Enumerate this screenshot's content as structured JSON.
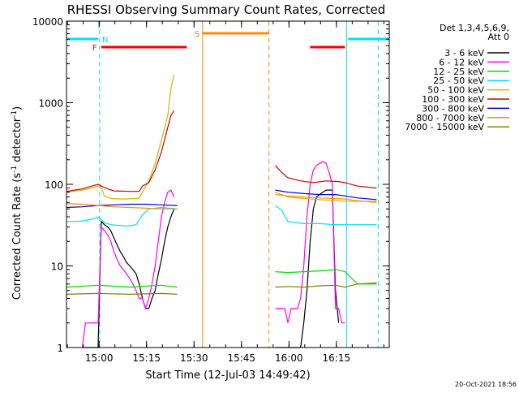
{
  "chart_data": {
    "type": "line",
    "title": "RHESSI Observing Summary Count Rates, Corrected",
    "xlabel": "Start Time (12-Jul-03 14:49:42)",
    "ylabel_main": "Corrected Count Rate (s",
    "ylabel_sup1": "-1",
    "ylabel_mid": " detector",
    "ylabel_sup2": "-1",
    "ylabel_end": ")",
    "y_scale": "log",
    "ylim": [
      1,
      10000
    ],
    "xlim_minutes": [
      0,
      102
    ],
    "x_tick_values": [
      10.3,
      25.3,
      40.3,
      55.3,
      70.3,
      85.3
    ],
    "x_tick_labels": [
      "15:00",
      "15:15",
      "15:30",
      "15:45",
      "16:00",
      "16:15"
    ],
    "y_tick_values": [
      1,
      10,
      100,
      1000,
      10000
    ],
    "y_tick_labels": [
      "1",
      "10",
      "100",
      "1000",
      "10000"
    ],
    "legend_header": [
      "Det 1,3,4,5,6,9,",
      "Att 0"
    ],
    "legend_position": "top-right",
    "footer_date": "20-Oct-2021 18:56",
    "flags": {
      "night_label": "N",
      "flare_label": "F",
      "saa_label": "S",
      "night_color": "#00e0ff",
      "flare_color": "#ff0000",
      "saa_color": "#ff8c00",
      "night_bars": [
        [
          0,
          10
        ],
        [
          89,
          102
        ]
      ],
      "flare_bars": [
        [
          11,
          38
        ],
        [
          77,
          88
        ]
      ],
      "saa_bar": [
        43,
        64
      ],
      "solid_lines": [
        [
          0,
          "#00e0ff"
        ],
        [
          88.5,
          "#00e0ff"
        ],
        [
          43,
          "#ff8c00"
        ]
      ],
      "dashed_lines": [
        [
          10.5,
          "#00e0ff"
        ],
        [
          98.5,
          "#00e0ff"
        ],
        [
          64,
          "#ff8c00"
        ]
      ]
    },
    "series": [
      {
        "name": "3 - 6 keV",
        "color": "#000000",
        "segments": [
          [
            [
              5,
              1
            ],
            [
              6,
              1
            ],
            [
              7,
              1
            ],
            [
              8,
              1
            ],
            [
              9,
              1
            ],
            [
              10,
              1
            ],
            [
              11,
              35
            ],
            [
              12,
              32
            ],
            [
              13,
              30
            ],
            [
              14,
              27
            ],
            [
              15,
              22
            ],
            [
              16,
              18
            ],
            [
              17,
              15
            ],
            [
              18,
              13
            ],
            [
              19,
              11
            ],
            [
              20,
              10
            ],
            [
              21,
              9
            ],
            [
              22,
              8
            ],
            [
              23,
              6
            ],
            [
              24,
              4
            ],
            [
              25,
              3
            ],
            [
              26,
              3
            ],
            [
              27,
              4
            ],
            [
              28,
              5
            ],
            [
              29,
              8
            ],
            [
              30,
              12
            ],
            [
              31,
              20
            ],
            [
              32,
              30
            ],
            [
              33,
              40
            ],
            [
              34,
              50
            ]
          ],
          [
            [
              66,
              1
            ],
            [
              67,
              1
            ],
            [
              68,
              1
            ],
            [
              69,
              1
            ],
            [
              70,
              1
            ],
            [
              71,
              1
            ],
            [
              72,
              1
            ],
            [
              73,
              1
            ],
            [
              74,
              1
            ],
            [
              75,
              2
            ],
            [
              76,
              5
            ],
            [
              77,
              20
            ],
            [
              78,
              50
            ],
            [
              79,
              70
            ],
            [
              80,
              75
            ],
            [
              81,
              80
            ],
            [
              82,
              85
            ],
            [
              83,
              85
            ],
            [
              84,
              85
            ],
            [
              85,
              5
            ],
            [
              86,
              2
            ]
          ]
        ]
      },
      {
        "name": "6 - 12 keV",
        "color": "#ff00ff",
        "segments": [
          [
            [
              5,
              1
            ],
            [
              6,
              2
            ],
            [
              7,
              2
            ],
            [
              8,
              2
            ],
            [
              9,
              2
            ],
            [
              10,
              2
            ],
            [
              11,
              30
            ],
            [
              12,
              27
            ],
            [
              13,
              24
            ],
            [
              14,
              20
            ],
            [
              15,
              15
            ],
            [
              16,
              12
            ],
            [
              17,
              10
            ],
            [
              18,
              9
            ],
            [
              19,
              8
            ],
            [
              20,
              7
            ],
            [
              21,
              6
            ],
            [
              22,
              5
            ],
            [
              23,
              4
            ],
            [
              24,
              4
            ],
            [
              25,
              3
            ],
            [
              26,
              4
            ],
            [
              27,
              6
            ],
            [
              28,
              10
            ],
            [
              29,
              20
            ],
            [
              30,
              40
            ],
            [
              31,
              60
            ],
            [
              32,
              80
            ],
            [
              33,
              85
            ],
            [
              34,
              70
            ]
          ],
          [
            [
              66,
              3
            ],
            [
              67,
              3
            ],
            [
              68,
              3
            ],
            [
              69,
              3
            ],
            [
              70,
              2
            ],
            [
              71,
              3
            ],
            [
              72,
              3
            ],
            [
              73,
              3
            ],
            [
              74,
              4
            ],
            [
              75,
              10
            ],
            [
              76,
              40
            ],
            [
              77,
              100
            ],
            [
              78,
              150
            ],
            [
              79,
              170
            ],
            [
              80,
              180
            ],
            [
              81,
              190
            ],
            [
              82,
              180
            ],
            [
              83,
              140
            ],
            [
              84,
              100
            ],
            [
              85,
              3
            ],
            [
              86,
              3
            ],
            [
              87,
              2
            ],
            [
              88,
              2
            ]
          ]
        ]
      },
      {
        "name": "12 - 25 keV",
        "color": "#00dd00",
        "segments": [
          [
            [
              0,
              5.5
            ],
            [
              10,
              5.8
            ],
            [
              20,
              5.5
            ],
            [
              30,
              5.8
            ],
            [
              35,
              5.5
            ]
          ],
          [
            [
              66,
              8.5
            ],
            [
              70,
              8.3
            ],
            [
              75,
              8.5
            ],
            [
              80,
              8.7
            ],
            [
              85,
              9
            ],
            [
              88,
              8.5
            ],
            [
              92,
              6
            ],
            [
              98,
              6
            ]
          ]
        ]
      },
      {
        "name": "25 - 50 keV",
        "color": "#00e0ff",
        "segments": [
          [
            [
              0,
              35
            ],
            [
              3,
              35
            ],
            [
              6,
              36
            ],
            [
              9,
              38
            ],
            [
              10,
              40
            ],
            [
              11,
              37
            ],
            [
              12,
              34
            ],
            [
              14,
              32
            ],
            [
              18,
              31
            ],
            [
              20,
              31
            ],
            [
              22,
              32
            ],
            [
              24,
              42
            ],
            [
              26,
              50
            ],
            [
              30,
              52
            ],
            [
              35,
              50
            ]
          ],
          [
            [
              66,
              55
            ],
            [
              68,
              48
            ],
            [
              70,
              35
            ],
            [
              75,
              33
            ],
            [
              80,
              33
            ],
            [
              85,
              32
            ],
            [
              90,
              32
            ],
            [
              98,
              32
            ]
          ]
        ]
      },
      {
        "name": "50 - 100 keV",
        "color": "#d4b400",
        "segments": [
          [
            [
              0,
              80
            ],
            [
              5,
              85
            ],
            [
              8,
              90
            ],
            [
              10,
              95
            ],
            [
              11,
              90
            ],
            [
              12,
              72
            ],
            [
              14,
              67
            ],
            [
              18,
              66
            ],
            [
              22,
              67
            ],
            [
              23,
              68
            ],
            [
              24,
              80
            ],
            [
              26,
              110
            ],
            [
              28,
              180
            ],
            [
              30,
              350
            ],
            [
              32,
              700
            ],
            [
              33,
              1500
            ],
            [
              34,
              2200
            ]
          ],
          [
            [
              66,
              80
            ],
            [
              70,
              70
            ],
            [
              75,
              67
            ],
            [
              80,
              65
            ],
            [
              85,
              63
            ],
            [
              90,
              62
            ],
            [
              98,
              62
            ]
          ]
        ]
      },
      {
        "name": "100 - 300 keV",
        "color": "#cc0000",
        "segments": [
          [
            [
              0,
              82
            ],
            [
              5,
              88
            ],
            [
              8,
              95
            ],
            [
              10,
              100
            ],
            [
              11,
              95
            ],
            [
              13,
              88
            ],
            [
              15,
              83
            ],
            [
              20,
              82
            ],
            [
              23,
              82
            ],
            [
              24,
              95
            ],
            [
              26,
              105
            ],
            [
              28,
              150
            ],
            [
              30,
              250
            ],
            [
              32,
              500
            ],
            [
              33,
              700
            ],
            [
              34,
              800
            ]
          ],
          [
            [
              66,
              170
            ],
            [
              68,
              140
            ],
            [
              70,
              120
            ],
            [
              74,
              110
            ],
            [
              78,
              105
            ],
            [
              82,
              110
            ],
            [
              86,
              108
            ],
            [
              88,
              105
            ],
            [
              92,
              95
            ],
            [
              98,
              90
            ]
          ]
        ]
      },
      {
        "name": "300 - 800 keV",
        "color": "#0000cc",
        "segments": [
          [
            [
              0,
              52
            ],
            [
              5,
              53
            ],
            [
              10,
              55
            ],
            [
              15,
              56
            ],
            [
              20,
              57
            ],
            [
              25,
              57
            ],
            [
              30,
              56
            ],
            [
              35,
              55
            ]
          ],
          [
            [
              66,
              85
            ],
            [
              70,
              80
            ],
            [
              75,
              77
            ],
            [
              80,
              75
            ],
            [
              85,
              75
            ],
            [
              88,
              72
            ],
            [
              92,
              68
            ],
            [
              98,
              65
            ]
          ]
        ]
      },
      {
        "name": "800 - 7000 keV",
        "color": "#ff8c00",
        "segments": [
          [
            [
              0,
              58
            ],
            [
              5,
              57
            ],
            [
              10,
              55
            ],
            [
              15,
              53
            ],
            [
              20,
              52
            ],
            [
              25,
              51
            ],
            [
              30,
              50
            ],
            [
              35,
              50
            ]
          ],
          [
            [
              66,
              75
            ],
            [
              70,
              72
            ],
            [
              75,
              70
            ],
            [
              80,
              68
            ],
            [
              85,
              67
            ],
            [
              88,
              66
            ],
            [
              92,
              63
            ],
            [
              98,
              60
            ]
          ]
        ]
      },
      {
        "name": "7000 - 15000 keV",
        "color": "#808000",
        "segments": [
          [
            [
              0,
              4.5
            ],
            [
              10,
              4.6
            ],
            [
              20,
              4.5
            ],
            [
              30,
              4.6
            ],
            [
              35,
              4.5
            ]
          ],
          [
            [
              66,
              5.5
            ],
            [
              70,
              5.6
            ],
            [
              75,
              5.5
            ],
            [
              80,
              5.7
            ],
            [
              85,
              5.8
            ],
            [
              88,
              5.5
            ],
            [
              92,
              6
            ],
            [
              98,
              6.2
            ]
          ]
        ]
      }
    ]
  }
}
